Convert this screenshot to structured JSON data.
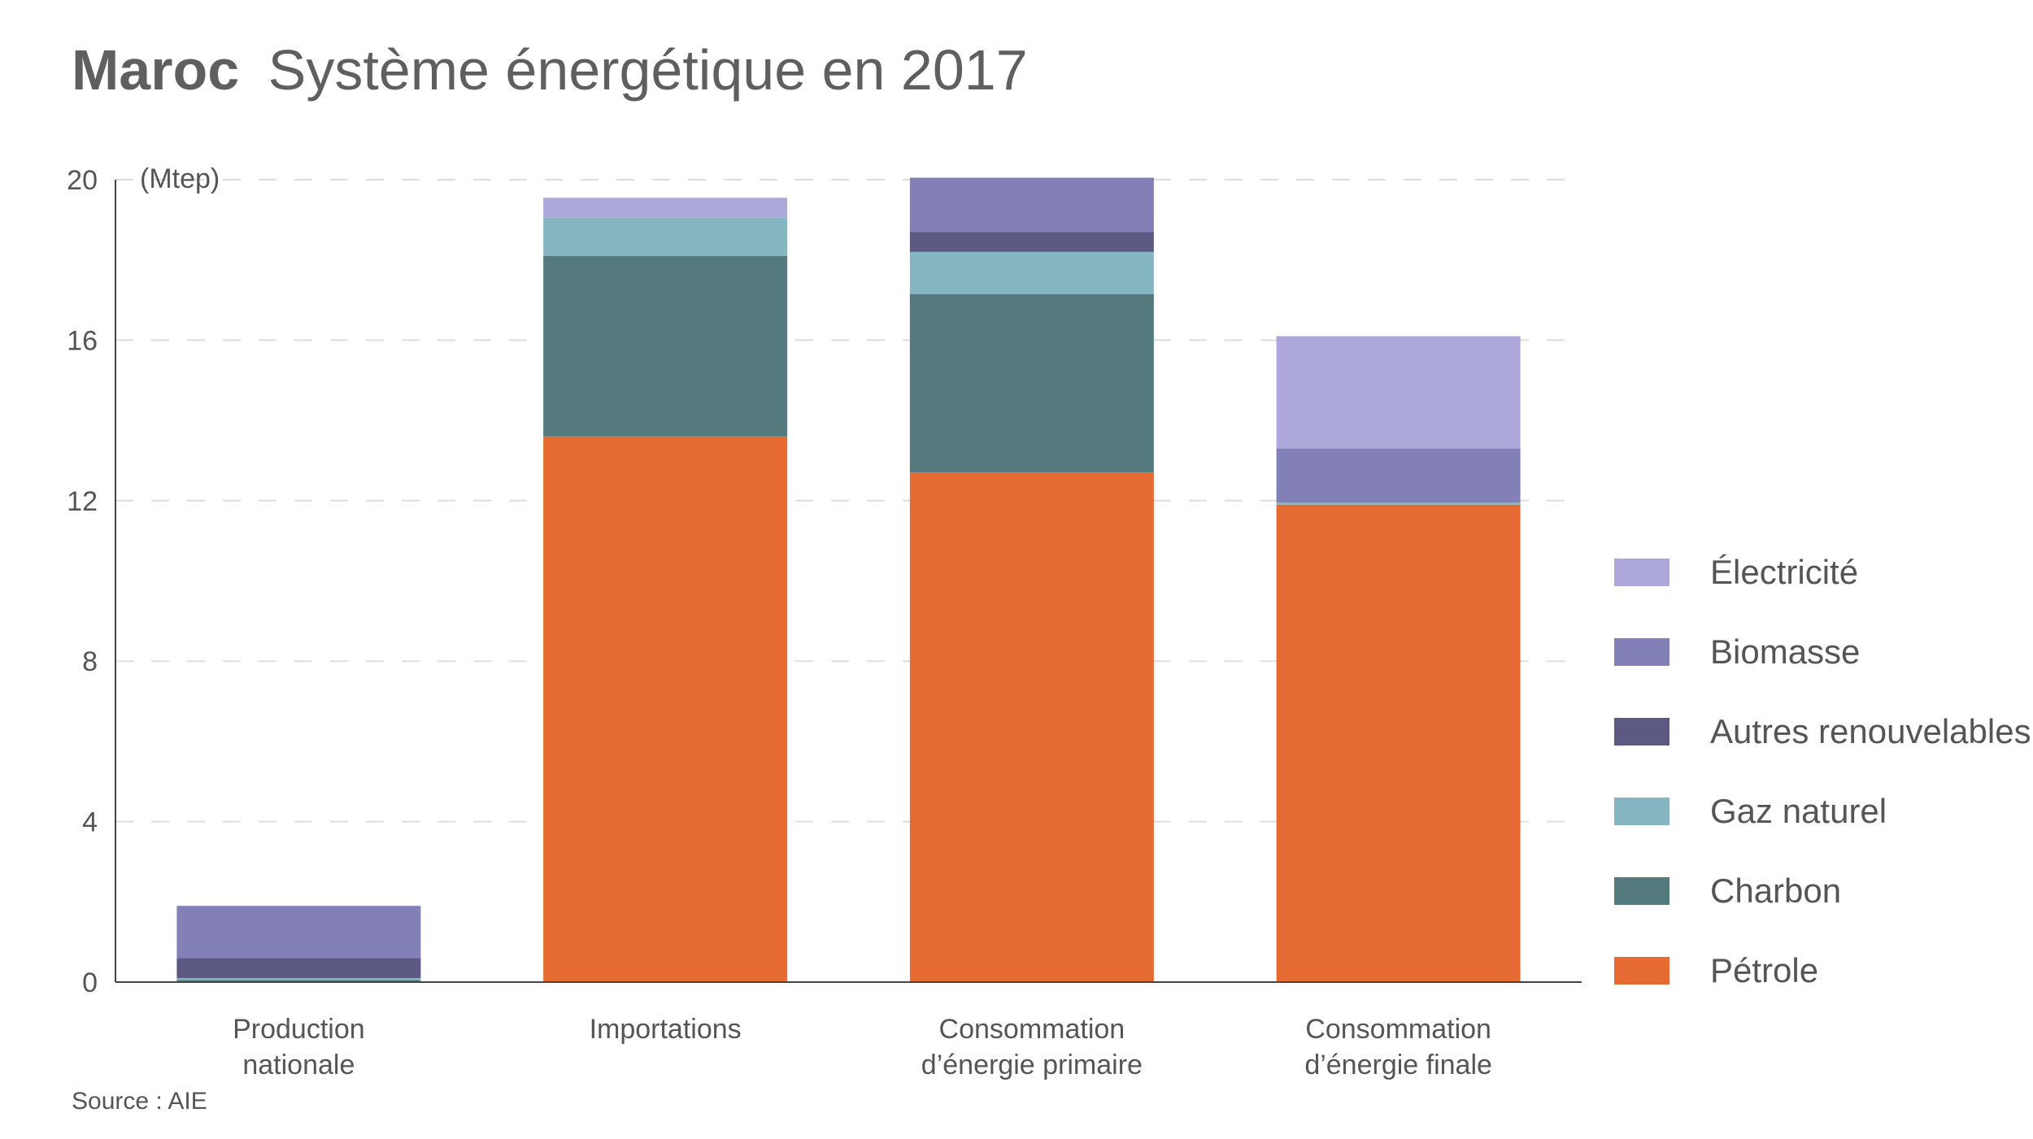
{
  "title": {
    "bold": "Maroc",
    "rest": "Système énergétique en 2017"
  },
  "source": "Source : AIE",
  "chart_data": {
    "type": "bar",
    "stacked": true,
    "unit_label": "(Mtep)",
    "ylim": [
      0,
      20
    ],
    "yticks": [
      0,
      4,
      8,
      12,
      16,
      20
    ],
    "grid": true,
    "legend_position": "right",
    "categories": [
      [
        "Production",
        "nationale"
      ],
      [
        "Importations"
      ],
      [
        "Consommation",
        "d’énergie primaire"
      ],
      [
        "Consommation",
        "d’énergie finale"
      ]
    ],
    "series": [
      {
        "name": "Pétrole",
        "color": "#e56b33",
        "values": [
          0.0,
          13.6,
          12.7,
          11.9
        ]
      },
      {
        "name": "Charbon",
        "color": "#557a7e",
        "values": [
          0.05,
          4.5,
          4.45,
          0.0
        ]
      },
      {
        "name": "Gaz naturel",
        "color": "#85b5c0",
        "values": [
          0.05,
          0.95,
          1.05,
          0.05
        ]
      },
      {
        "name": "Autres renouvelables",
        "color": "#5c5a82",
        "values": [
          0.5,
          0.0,
          0.5,
          0.0
        ]
      },
      {
        "name": "Biomasse",
        "color": "#837fb7",
        "values": [
          1.3,
          0.0,
          1.35,
          1.35
        ]
      },
      {
        "name": "Électricité",
        "color": "#aca8d9",
        "values": [
          0.0,
          0.5,
          0.0,
          2.8
        ]
      }
    ]
  }
}
